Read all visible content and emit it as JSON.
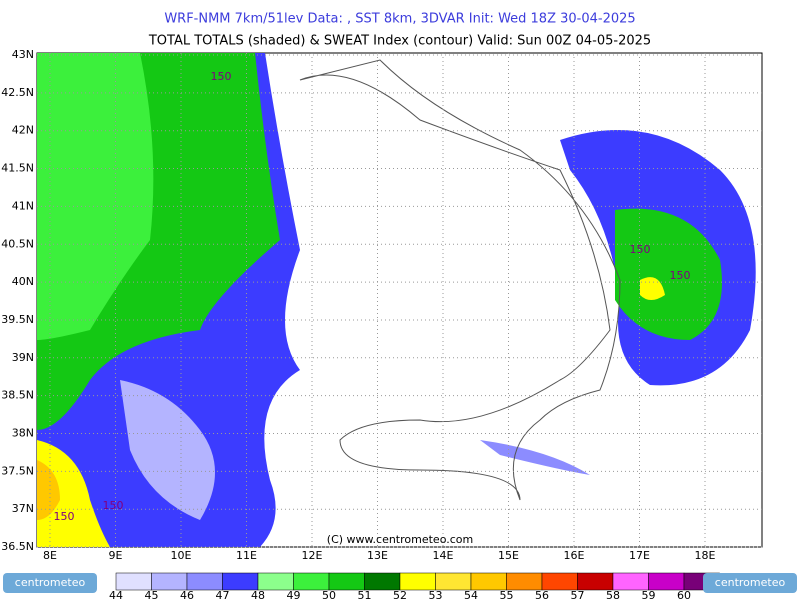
{
  "header": {
    "line1": "WRF-NMM 7km/51lev   Data: , SST 8km, 3DVAR   Init: Wed 18Z 30-04-2025",
    "line2": "TOTAL TOTALS (shaded) & SWEAT Index (contour)  Valid: Sun 00Z 04-05-2025"
  },
  "map": {
    "lon_labels": [
      "8E",
      "9E",
      "10E",
      "11E",
      "12E",
      "13E",
      "14E",
      "15E",
      "16E",
      "17E",
      "18E"
    ],
    "lat_labels": [
      "43N",
      "42.5N",
      "42N",
      "41.5N",
      "41N",
      "40.5N",
      "40N",
      "39.5N",
      "39N",
      "38.5N",
      "38N",
      "37.5N",
      "37N",
      "36.5N"
    ],
    "contour_labels": [
      "150",
      "150",
      "150",
      "150",
      "150"
    ],
    "copyright": "(C) www.centrometeo.com"
  },
  "colorbar": {
    "labels": [
      44,
      45,
      46,
      47,
      48,
      49,
      50,
      51,
      52,
      53,
      54,
      55,
      56,
      57,
      58,
      59,
      60
    ],
    "colors": [
      "#e0e0ff",
      "#b4b4ff",
      "#8c8cff",
      "#3c3cff",
      "#8cff8c",
      "#3cf03c",
      "#14c814",
      "#007800",
      "#ffff00",
      "#ffe632",
      "#ffc800",
      "#ff8c00",
      "#ff4600",
      "#c80000",
      "#ff64ff",
      "#c800c8",
      "#780078"
    ]
  },
  "logos": {
    "left": "centrometeo",
    "right": "centrometeo"
  }
}
